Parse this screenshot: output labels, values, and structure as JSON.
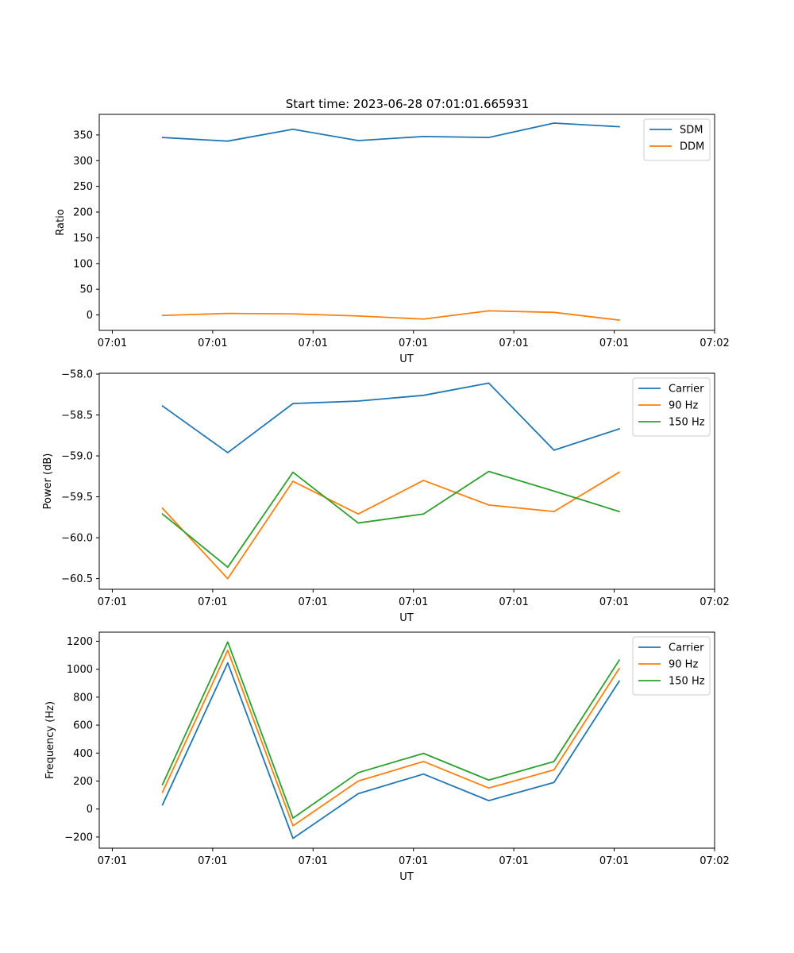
{
  "colors": {
    "c0": "#1f77b4",
    "c1": "#ff7f0e",
    "c2": "#2ca02c"
  },
  "chart_data": [
    {
      "type": "line",
      "title": "Start time: 2023-06-28 07:01:01.665931",
      "xlabel": "UT",
      "ylabel": "Ratio",
      "xlim": [
        -0.13,
        6.0
      ],
      "ylim": [
        -30,
        390
      ],
      "xticks": [
        0,
        1,
        2,
        3,
        4,
        5,
        6
      ],
      "xtick_labels": [
        "07:01",
        "07:01",
        "07:01",
        "07:01",
        "07:01",
        "07:01",
        "07:02"
      ],
      "yticks": [
        0,
        50,
        100,
        150,
        200,
        250,
        300,
        350
      ],
      "ytick_labels": [
        "0",
        "50",
        "100",
        "150",
        "200",
        "250",
        "300",
        "350"
      ],
      "legend_position": "top-right",
      "x": [
        0.5,
        1.15,
        1.8,
        2.45,
        3.1,
        3.75,
        4.4,
        5.05
      ],
      "series": [
        {
          "name": "SDM",
          "color_key": "c0",
          "values": [
            345,
            338,
            361,
            339,
            347,
            345,
            373,
            366
          ]
        },
        {
          "name": "DDM",
          "color_key": "c1",
          "values": [
            -1,
            3,
            2,
            -2,
            -8,
            8,
            5,
            -10
          ]
        }
      ]
    },
    {
      "type": "line",
      "title": "",
      "xlabel": "UT",
      "ylabel": "Power (dB)",
      "xlim": [
        -0.13,
        6.0
      ],
      "ylim": [
        -60.63,
        -57.99
      ],
      "xticks": [
        0,
        1,
        2,
        3,
        4,
        5,
        6
      ],
      "xtick_labels": [
        "07:01",
        "07:01",
        "07:01",
        "07:01",
        "07:01",
        "07:01",
        "07:02"
      ],
      "yticks": [
        -60.5,
        -60.0,
        -59.5,
        -59.0,
        -58.5,
        -58.0
      ],
      "ytick_labels": [
        "−60.5",
        "−60.0",
        "−59.5",
        "−59.0",
        "−58.5",
        "−58.0"
      ],
      "legend_position": "top-right",
      "x": [
        0.5,
        1.15,
        1.8,
        2.45,
        3.1,
        3.75,
        4.4,
        5.05
      ],
      "series": [
        {
          "name": "Carrier",
          "color_key": "c0",
          "values": [
            -58.39,
            -58.96,
            -58.36,
            -58.33,
            -58.26,
            -58.11,
            -58.93,
            -58.67
          ]
        },
        {
          "name": "90 Hz",
          "color_key": "c1",
          "values": [
            -59.64,
            -60.5,
            -59.31,
            -59.71,
            -59.3,
            -59.6,
            -59.68,
            -59.2
          ]
        },
        {
          "name": "150 Hz",
          "color_key": "c2",
          "values": [
            -59.71,
            -60.36,
            -59.2,
            -59.82,
            -59.71,
            -59.19,
            -59.43,
            -59.68
          ]
        }
      ]
    },
    {
      "type": "line",
      "title": "",
      "xlabel": "UT",
      "ylabel": "Frequency (Hz)",
      "xlim": [
        -0.13,
        6.0
      ],
      "ylim": [
        -280,
        1265
      ],
      "xticks": [
        0,
        1,
        2,
        3,
        4,
        5,
        6
      ],
      "xtick_labels": [
        "07:01",
        "07:01",
        "07:01",
        "07:01",
        "07:01",
        "07:01",
        "07:02"
      ],
      "yticks": [
        -200,
        0,
        200,
        400,
        600,
        800,
        1000,
        1200
      ],
      "ytick_labels": [
        "−200",
        "0",
        "200",
        "400",
        "600",
        "800",
        "1000",
        "1200"
      ],
      "legend_position": "top-right",
      "x": [
        0.5,
        1.15,
        1.8,
        2.45,
        3.1,
        3.75,
        4.4,
        5.05
      ],
      "series": [
        {
          "name": "Carrier",
          "color_key": "c0",
          "values": [
            30,
            1045,
            -210,
            110,
            250,
            60,
            190,
            915
          ]
        },
        {
          "name": "90 Hz",
          "color_key": "c1",
          "values": [
            120,
            1135,
            -120,
            200,
            340,
            150,
            280,
            1005
          ]
        },
        {
          "name": "150 Hz",
          "color_key": "c2",
          "values": [
            175,
            1195,
            -65,
            260,
            398,
            207,
            340,
            1065
          ]
        }
      ]
    }
  ]
}
